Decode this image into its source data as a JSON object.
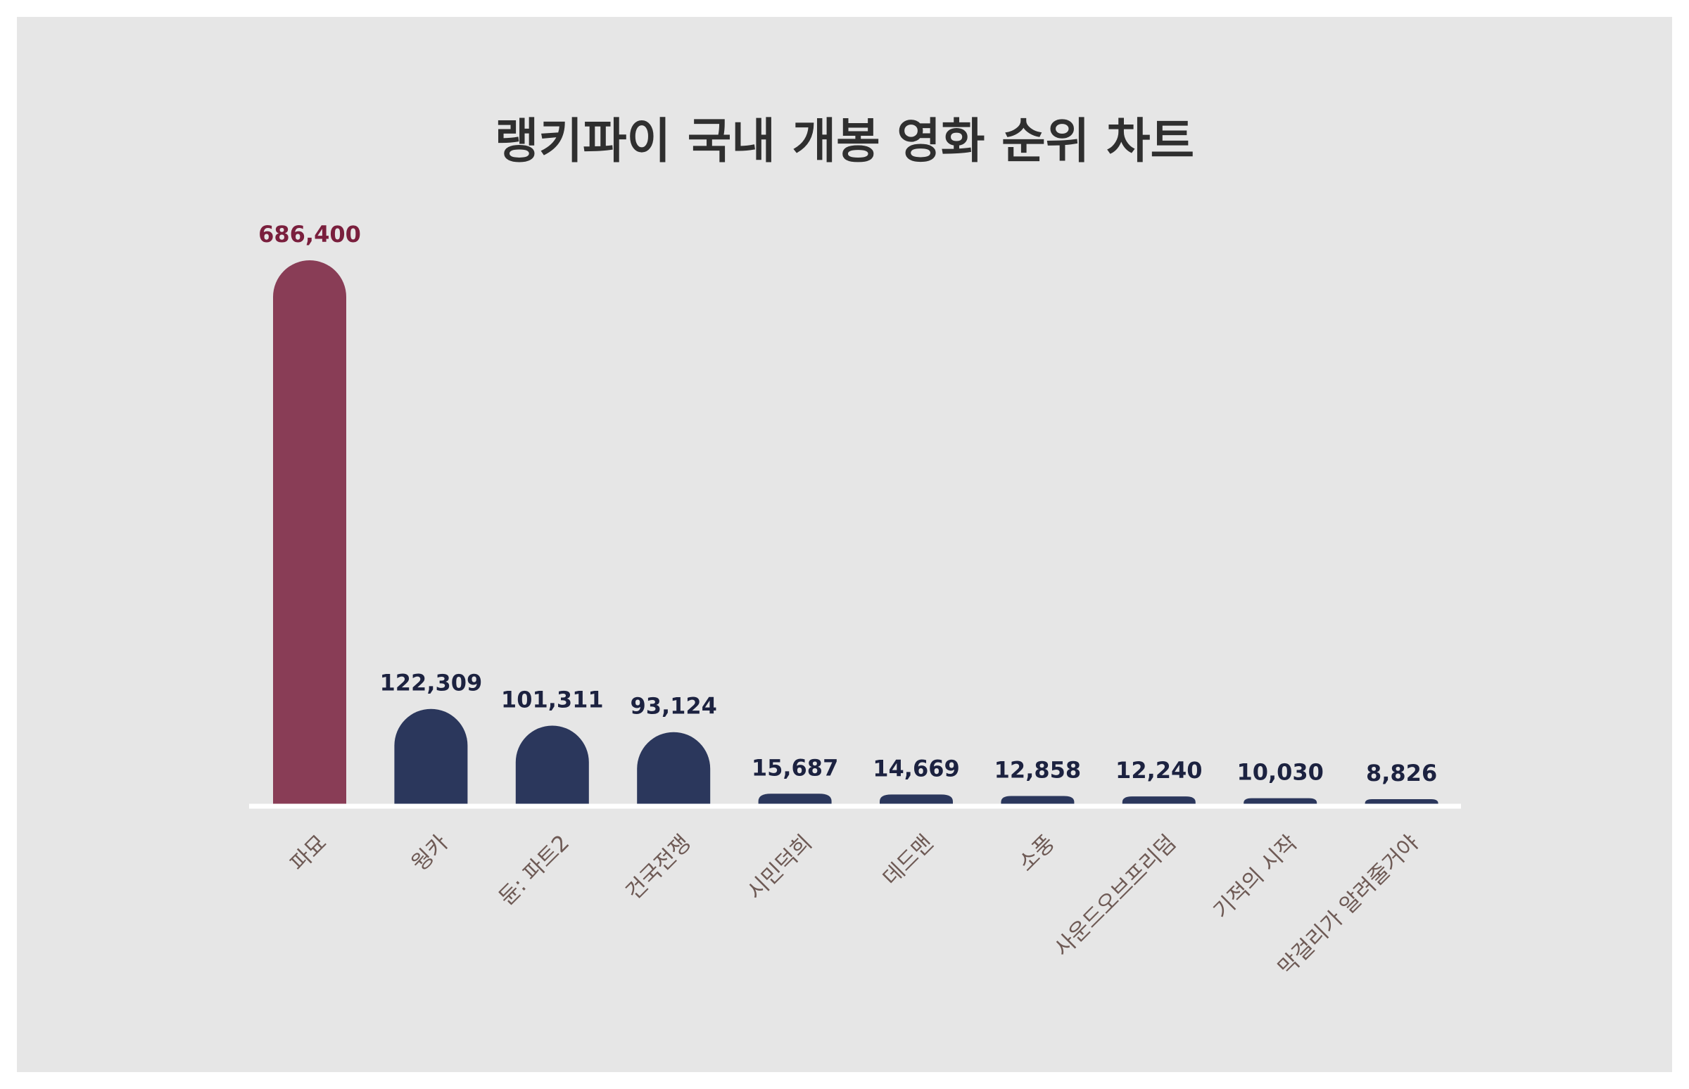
{
  "chart_data": {
    "type": "bar",
    "title": "랭키파이 국내 개봉 영화 순위 차트",
    "xlabel": "",
    "ylabel": "",
    "categories": [
      "파묘",
      "웡카",
      "듄: 파트2",
      "건국전쟁",
      "시민덕희",
      "데드맨",
      "소풍",
      "사운드오브프리덤",
      "기적의 시작",
      "막걸리가 알려줄거야"
    ],
    "values": [
      686400,
      122309,
      101311,
      93124,
      15687,
      14669,
      12858,
      12240,
      10030,
      8826
    ],
    "value_labels": [
      "686,400",
      "122,309",
      "101,311",
      "93,124",
      "15,687",
      "14,669",
      "12,858",
      "12,240",
      "10,030",
      "8,826"
    ],
    "highlight_index": 0,
    "ylim": [
      0,
      686400
    ],
    "grid": false,
    "legend": "none",
    "colors": {
      "background": "#e6e6e6",
      "highlight_bar": "#893d56",
      "highlight_label": "#7a1f3d",
      "bar": "#2b375c",
      "value_label": "#1c2240",
      "category_label": "#6e5a55",
      "baseline": "#ffffff",
      "title": "#2f2f2f"
    }
  }
}
